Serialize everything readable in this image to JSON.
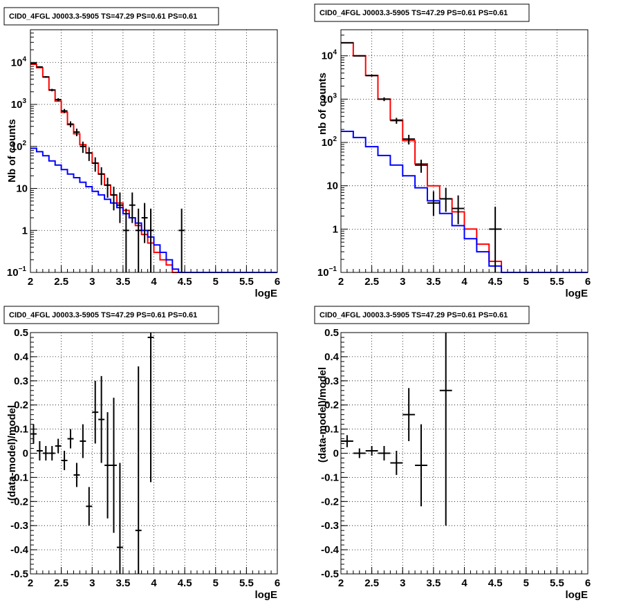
{
  "chart_data": [
    {
      "type": "line",
      "title": "CID0_4FGL J0003.3-5905 TS=47.29 PS=0.61 PS=0.61",
      "xlabel": "logE",
      "ylabel": "Nb of counts",
      "xlim": [
        2,
        6
      ],
      "ylim": [
        0.1,
        60000
      ],
      "yscale": "log",
      "grid": true,
      "xticks": [
        "2",
        "2.5",
        "3",
        "3.5",
        "4",
        "4.5",
        "5",
        "5.5",
        "6"
      ],
      "yticks": [
        {
          "v": 0.1,
          "base": "10",
          "exp": "−1"
        },
        {
          "v": 1,
          "base": "1",
          "exp": ""
        },
        {
          "v": 10,
          "base": "10",
          "exp": ""
        },
        {
          "v": 100,
          "base": "10",
          "exp": "2"
        },
        {
          "v": 1000,
          "base": "10",
          "exp": "3"
        },
        {
          "v": 10000,
          "base": "10",
          "exp": "4"
        }
      ],
      "binwidth": 0.1,
      "series": [
        {
          "color": "#ff0000",
          "style": "step",
          "x": [
            2.05,
            2.15,
            2.25,
            2.35,
            2.45,
            2.55,
            2.65,
            2.75,
            2.85,
            2.95,
            3.05,
            3.15,
            3.25,
            3.35,
            3.45,
            3.55,
            3.65,
            3.75,
            3.85,
            3.95,
            4.05,
            4.15,
            4.25,
            4.35,
            4.45,
            4.55,
            4.65,
            4.75,
            4.85,
            4.95,
            5.05,
            5.15,
            5.25,
            5.35,
            5.45,
            5.55,
            5.65,
            5.75,
            5.85,
            5.95
          ],
          "values": [
            9000,
            7500,
            4500,
            2200,
            1200,
            650,
            330,
            200,
            110,
            70,
            40,
            22,
            12,
            7,
            4.5,
            3,
            2,
            1.3,
            0.8,
            0.5,
            0.3,
            0.2,
            0.15,
            0.1,
            0.1,
            0.1,
            0.1,
            0.1,
            0.1,
            0.1,
            0.1,
            0.1,
            0.1,
            0.1,
            0.1,
            0.1,
            0.1,
            0.1,
            0.1,
            0.1
          ]
        },
        {
          "color": "#0000ff",
          "style": "step",
          "x": [
            2.05,
            2.15,
            2.25,
            2.35,
            2.45,
            2.55,
            2.65,
            2.75,
            2.85,
            2.95,
            3.05,
            3.15,
            3.25,
            3.35,
            3.45,
            3.55,
            3.65,
            3.75,
            3.85,
            3.95,
            4.05,
            4.15,
            4.25,
            4.35,
            4.45,
            4.55,
            4.65,
            4.75,
            4.85,
            4.95,
            5.05,
            5.15,
            5.25,
            5.35,
            5.45,
            5.55,
            5.65,
            5.75,
            5.85,
            5.95
          ],
          "values": [
            90,
            75,
            60,
            45,
            36,
            28,
            22,
            18,
            14,
            11,
            8.5,
            7,
            5.5,
            4.5,
            3.5,
            2.5,
            2,
            1.5,
            1,
            0.7,
            0.45,
            0.3,
            0.2,
            0.12,
            0.1,
            0.1,
            0.1,
            0.1,
            0.1,
            0.1,
            0.1,
            0.1,
            0.1,
            0.1,
            0.1,
            0.1,
            0.1,
            0.1,
            0.1,
            0.1
          ]
        },
        {
          "color": "#000000",
          "style": "errorbar",
          "x": [
            2.05,
            2.15,
            2.25,
            2.35,
            2.45,
            2.55,
            2.65,
            2.75,
            2.85,
            2.95,
            3.05,
            3.15,
            3.25,
            3.35,
            3.45,
            3.55,
            3.65,
            3.75,
            3.85,
            3.95,
            4.45
          ],
          "values": [
            9500,
            7800,
            4500,
            2200,
            1300,
            700,
            340,
            220,
            100,
            70,
            40,
            22,
            12,
            7,
            4,
            1,
            4,
            1,
            2,
            1,
            1
          ],
          "err_lo": [
            300,
            280,
            200,
            150,
            110,
            80,
            55,
            45,
            30,
            25,
            15,
            10,
            6,
            4,
            2.5,
            0.92,
            2.5,
            0.92,
            1.5,
            0.92,
            0.92
          ],
          "err_hi": [
            300,
            280,
            200,
            150,
            110,
            80,
            55,
            45,
            30,
            25,
            15,
            10,
            6,
            4,
            4,
            2.3,
            4,
            2.3,
            2.5,
            2.3,
            2.3
          ]
        }
      ]
    },
    {
      "type": "line",
      "title": "CID0_4FGL J0003.3-5905 TS=47.29 PS=0.61 PS=0.61",
      "xlabel": "logE",
      "ylabel": "nb of counts",
      "xlim": [
        2,
        6
      ],
      "ylim": [
        0.1,
        40000
      ],
      "yscale": "log",
      "grid": true,
      "xticks": [
        "2",
        "2.5",
        "3",
        "3.5",
        "4",
        "4.5",
        "5",
        "5.5",
        "6"
      ],
      "yticks": [
        {
          "v": 0.1,
          "base": "10",
          "exp": "−1"
        },
        {
          "v": 1,
          "base": "1",
          "exp": ""
        },
        {
          "v": 10,
          "base": "10",
          "exp": ""
        },
        {
          "v": 100,
          "base": "10",
          "exp": "2"
        },
        {
          "v": 1000,
          "base": "10",
          "exp": "3"
        },
        {
          "v": 10000,
          "base": "10",
          "exp": "4"
        }
      ],
      "binwidth": 0.2,
      "series": [
        {
          "color": "#ff0000",
          "style": "step",
          "x": [
            2.1,
            2.3,
            2.5,
            2.7,
            2.9,
            3.1,
            3.3,
            3.5,
            3.7,
            3.9,
            4.1,
            4.3,
            4.5,
            4.7,
            4.9,
            5.1,
            5.3,
            5.5,
            5.7,
            5.9
          ],
          "values": [
            20000,
            10000,
            3500,
            1000,
            330,
            110,
            32,
            10,
            5,
            2.5,
            1,
            0.45,
            0.18,
            0.1,
            0.1,
            0.1,
            0.1,
            0.1,
            0.1,
            0.1
          ]
        },
        {
          "color": "#0000ff",
          "style": "step",
          "x": [
            2.1,
            2.3,
            2.5,
            2.7,
            2.9,
            3.1,
            3.3,
            3.5,
            3.7,
            3.9,
            4.1,
            4.3,
            4.5,
            4.7,
            4.9,
            5.1,
            5.3,
            5.5,
            5.7,
            5.9
          ],
          "values": [
            180,
            130,
            80,
            50,
            30,
            17,
            9,
            4.5,
            2.3,
            1.2,
            0.6,
            0.3,
            0.14,
            0.1,
            0.1,
            0.1,
            0.1,
            0.1,
            0.1,
            0.1
          ]
        },
        {
          "color": "#000000",
          "style": "errorbar",
          "x": [
            2.1,
            2.3,
            2.5,
            2.7,
            2.9,
            3.1,
            3.3,
            3.5,
            3.7,
            3.9,
            4.5
          ],
          "values": [
            20000,
            10000,
            3500,
            1000,
            320,
            120,
            30,
            4,
            5,
            3,
            1
          ],
          "err_lo": [
            450,
            320,
            190,
            100,
            50,
            30,
            10,
            2,
            2.5,
            1.7,
            0.92
          ],
          "err_hi": [
            450,
            320,
            190,
            100,
            50,
            30,
            10,
            3.5,
            4,
            3,
            2.3
          ]
        }
      ]
    },
    {
      "type": "scatter",
      "title": "CID0_4FGL J0003.3-5905 TS=47.29 PS=0.61 PS=0.61",
      "xlabel": "logE",
      "ylabel": "(data-model)/model",
      "xlim": [
        2,
        6
      ],
      "ylim": [
        -0.5,
        0.5
      ],
      "grid": true,
      "xticks": [
        "2",
        "2.5",
        "3",
        "3.5",
        "4",
        "4.5",
        "5",
        "5.5",
        "6"
      ],
      "yticks": [
        "-0.5",
        "-0.4",
        "-0.3",
        "-0.2",
        "-0.1",
        "0",
        "0.1",
        "0.2",
        "0.3",
        "0.4",
        "0.5"
      ],
      "binwidth": 0.1,
      "series": [
        {
          "color": "#000000",
          "style": "errorbar",
          "x": [
            2.05,
            2.15,
            2.25,
            2.35,
            2.45,
            2.55,
            2.65,
            2.75,
            2.85,
            2.95,
            3.05,
            3.15,
            3.25,
            3.35,
            3.45,
            3.75,
            3.95
          ],
          "values": [
            0.08,
            0.01,
            0.0,
            0.0,
            0.03,
            -0.03,
            0.06,
            -0.09,
            0.05,
            -0.22,
            0.17,
            0.14,
            -0.05,
            -0.05,
            -0.39,
            -0.32,
            0.48
          ],
          "err": [
            0.04,
            0.04,
            0.03,
            0.03,
            0.03,
            0.04,
            0.04,
            0.05,
            0.07,
            0.08,
            0.13,
            0.18,
            0.22,
            0.28,
            0.35,
            0.68,
            0.6
          ]
        }
      ]
    },
    {
      "type": "scatter",
      "title": "CID0_4FGL J0003.3-5905 TS=47.29 PS=0.61 PS=0.61",
      "xlabel": "logE",
      "ylabel": "(data-model)/model",
      "xlim": [
        2,
        6
      ],
      "ylim": [
        -0.5,
        0.5
      ],
      "grid": true,
      "xticks": [
        "2",
        "2.5",
        "3",
        "3.5",
        "4",
        "4.5",
        "5",
        "5.5",
        "6"
      ],
      "yticks": [
        "-0.5",
        "-0.4",
        "-0.3",
        "-0.2",
        "-0.1",
        "0",
        "0.1",
        "0.2",
        "0.3",
        "0.4",
        "0.5"
      ],
      "binwidth": 0.2,
      "series": [
        {
          "color": "#000000",
          "style": "errorbar",
          "x": [
            2.1,
            2.3,
            2.5,
            2.7,
            2.9,
            3.1,
            3.3,
            3.7
          ],
          "values": [
            0.05,
            0.0,
            0.01,
            0.0,
            -0.04,
            0.16,
            -0.05,
            0.26
          ],
          "err": [
            0.025,
            0.02,
            0.02,
            0.03,
            0.05,
            0.11,
            0.17,
            0.56
          ]
        }
      ]
    }
  ]
}
